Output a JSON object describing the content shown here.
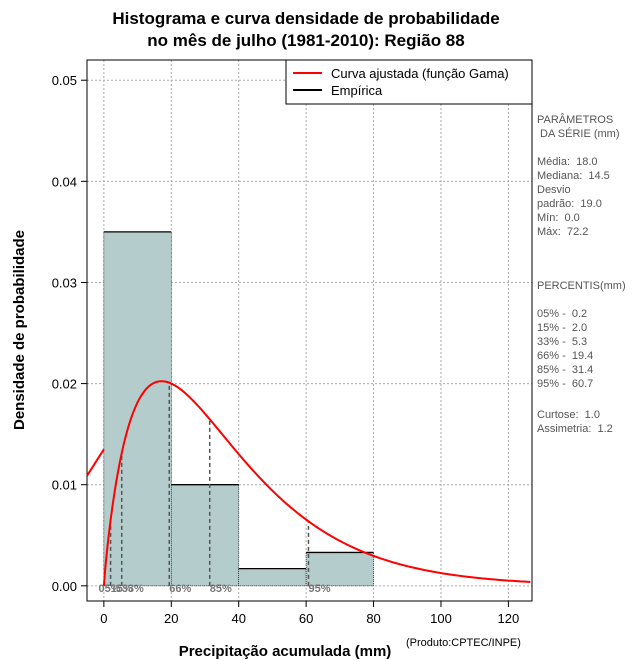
{
  "chart_data": {
    "type": "bar",
    "title": [
      "Histograma e curva densidade de probabilidade",
      "no mês de julho (1981-2010): Região 88"
    ],
    "xlabel": "Precipitação acumulada (mm)",
    "ylabel": "Densidade de probabilidade",
    "credit": "(Produto:CPTEC/INPE)",
    "xlim": [
      -5,
      127
    ],
    "ylim": [
      -0.0015,
      0.052
    ],
    "xticks": [
      0,
      20,
      40,
      60,
      80,
      100,
      120
    ],
    "yticks": [
      0.0,
      0.01,
      0.02,
      0.03,
      0.04,
      0.05
    ],
    "ytick_labels": [
      "0.00",
      "0.01",
      "0.02",
      "0.03",
      "0.04",
      "0.05"
    ],
    "bins": [
      {
        "from": 0,
        "to": 20,
        "density": 0.035
      },
      {
        "from": 20,
        "to": 40,
        "density": 0.01
      },
      {
        "from": 40,
        "to": 60,
        "density": 0.0017
      },
      {
        "from": 60,
        "to": 80,
        "density": 0.0033
      }
    ],
    "bar_color": "#b4cccc",
    "curve": {
      "name": "Curva ajustada (função Gama)",
      "shape": 1.9,
      "scale": 19.0,
      "color": "#ff0000"
    },
    "legend": [
      {
        "label": "Curva ajustada (função Gama)",
        "color": "#ff0000"
      },
      {
        "label": "Empírica",
        "color": "#000000"
      }
    ],
    "percentiles": [
      {
        "label": "05%",
        "value": 0.2
      },
      {
        "label": "15%",
        "value": 2.0
      },
      {
        "label": "33%",
        "value": 5.3
      },
      {
        "label": "66%",
        "value": 19.4
      },
      {
        "label": "85%",
        "value": 31.4
      },
      {
        "label": "95%",
        "value": 60.7
      }
    ]
  },
  "side_panel": {
    "params_title": "PARÂMETROS\n DA SÉRIE (mm)",
    "params": "Média:  18.0\nMediana:  14.5\nDesvio\npadrão:  19.0\nMín:  0.0\nMáx:  72.2",
    "percentis_title": "PERCENTIS(mm)",
    "percentis": "05% -  0.2\n15% -  2.0\n33% -  5.3\n66% -  19.4\n85% -  31.4\n95% -  60.7",
    "stats": "Curtose:  1.0\nAssimetria:  1.2"
  }
}
